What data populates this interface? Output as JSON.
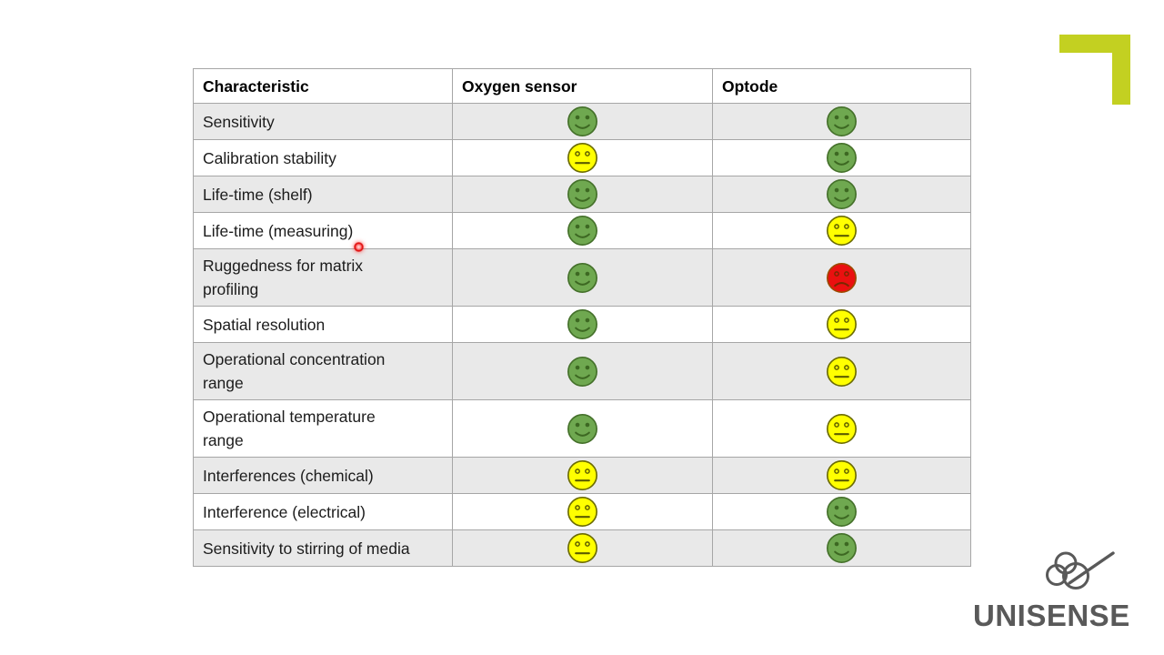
{
  "slide": {
    "table": {
      "columns": [
        "Characteristic",
        "Oxygen sensor",
        "Optode"
      ],
      "rows": [
        {
          "characteristic": "Sensitivity",
          "oxygen_sensor": "green-smile",
          "optode": "green-smile"
        },
        {
          "characteristic": "Calibration stability",
          "oxygen_sensor": "yellow-neutral",
          "optode": "green-smile"
        },
        {
          "characteristic": "Life-time (shelf)",
          "oxygen_sensor": "green-smile",
          "optode": "green-smile"
        },
        {
          "characteristic": "Life-time (measuring)",
          "oxygen_sensor": "green-smile",
          "optode": "yellow-neutral"
        },
        {
          "characteristic": "Ruggedness for matrix profiling",
          "oxygen_sensor": "green-smile",
          "optode": "red-frown"
        },
        {
          "characteristic": "Spatial resolution",
          "oxygen_sensor": "green-smile",
          "optode": "yellow-neutral"
        },
        {
          "characteristic": "Operational concentration range",
          "oxygen_sensor": "green-smile",
          "optode": "yellow-neutral"
        },
        {
          "characteristic": "Operational temperature range",
          "oxygen_sensor": "green-smile",
          "optode": "yellow-neutral"
        },
        {
          "characteristic": "Interferences (chemical)",
          "oxygen_sensor": "yellow-neutral",
          "optode": "yellow-neutral"
        },
        {
          "characteristic": "Interference (electrical)",
          "oxygen_sensor": "yellow-neutral",
          "optode": "green-smile"
        },
        {
          "characteristic": "Sensitivity to stirring of media",
          "oxygen_sensor": "yellow-neutral",
          "optode": "green-smile"
        }
      ]
    },
    "icons": {
      "green-smile": "green-smiley-face-icon",
      "yellow-neutral": "yellow-neutral-face-icon",
      "red-frown": "red-frown-face-icon"
    },
    "branding": {
      "company": "UNISENSE"
    }
  },
  "colors": {
    "row_stripe": "#e9e9e9",
    "table_border": "#a6a6a6",
    "accent_corner": "#c3d021",
    "logo_gray": "#595959",
    "smiley_green_fill": "#6fa850",
    "smiley_green_line": "#44702a",
    "smiley_yellow_fill": "#ffff00",
    "smiley_yellow_line": "#6b6b00",
    "smiley_red_fill": "#ea1010",
    "smiley_red_line": "#8c3500",
    "laser_red": "#e00000"
  }
}
